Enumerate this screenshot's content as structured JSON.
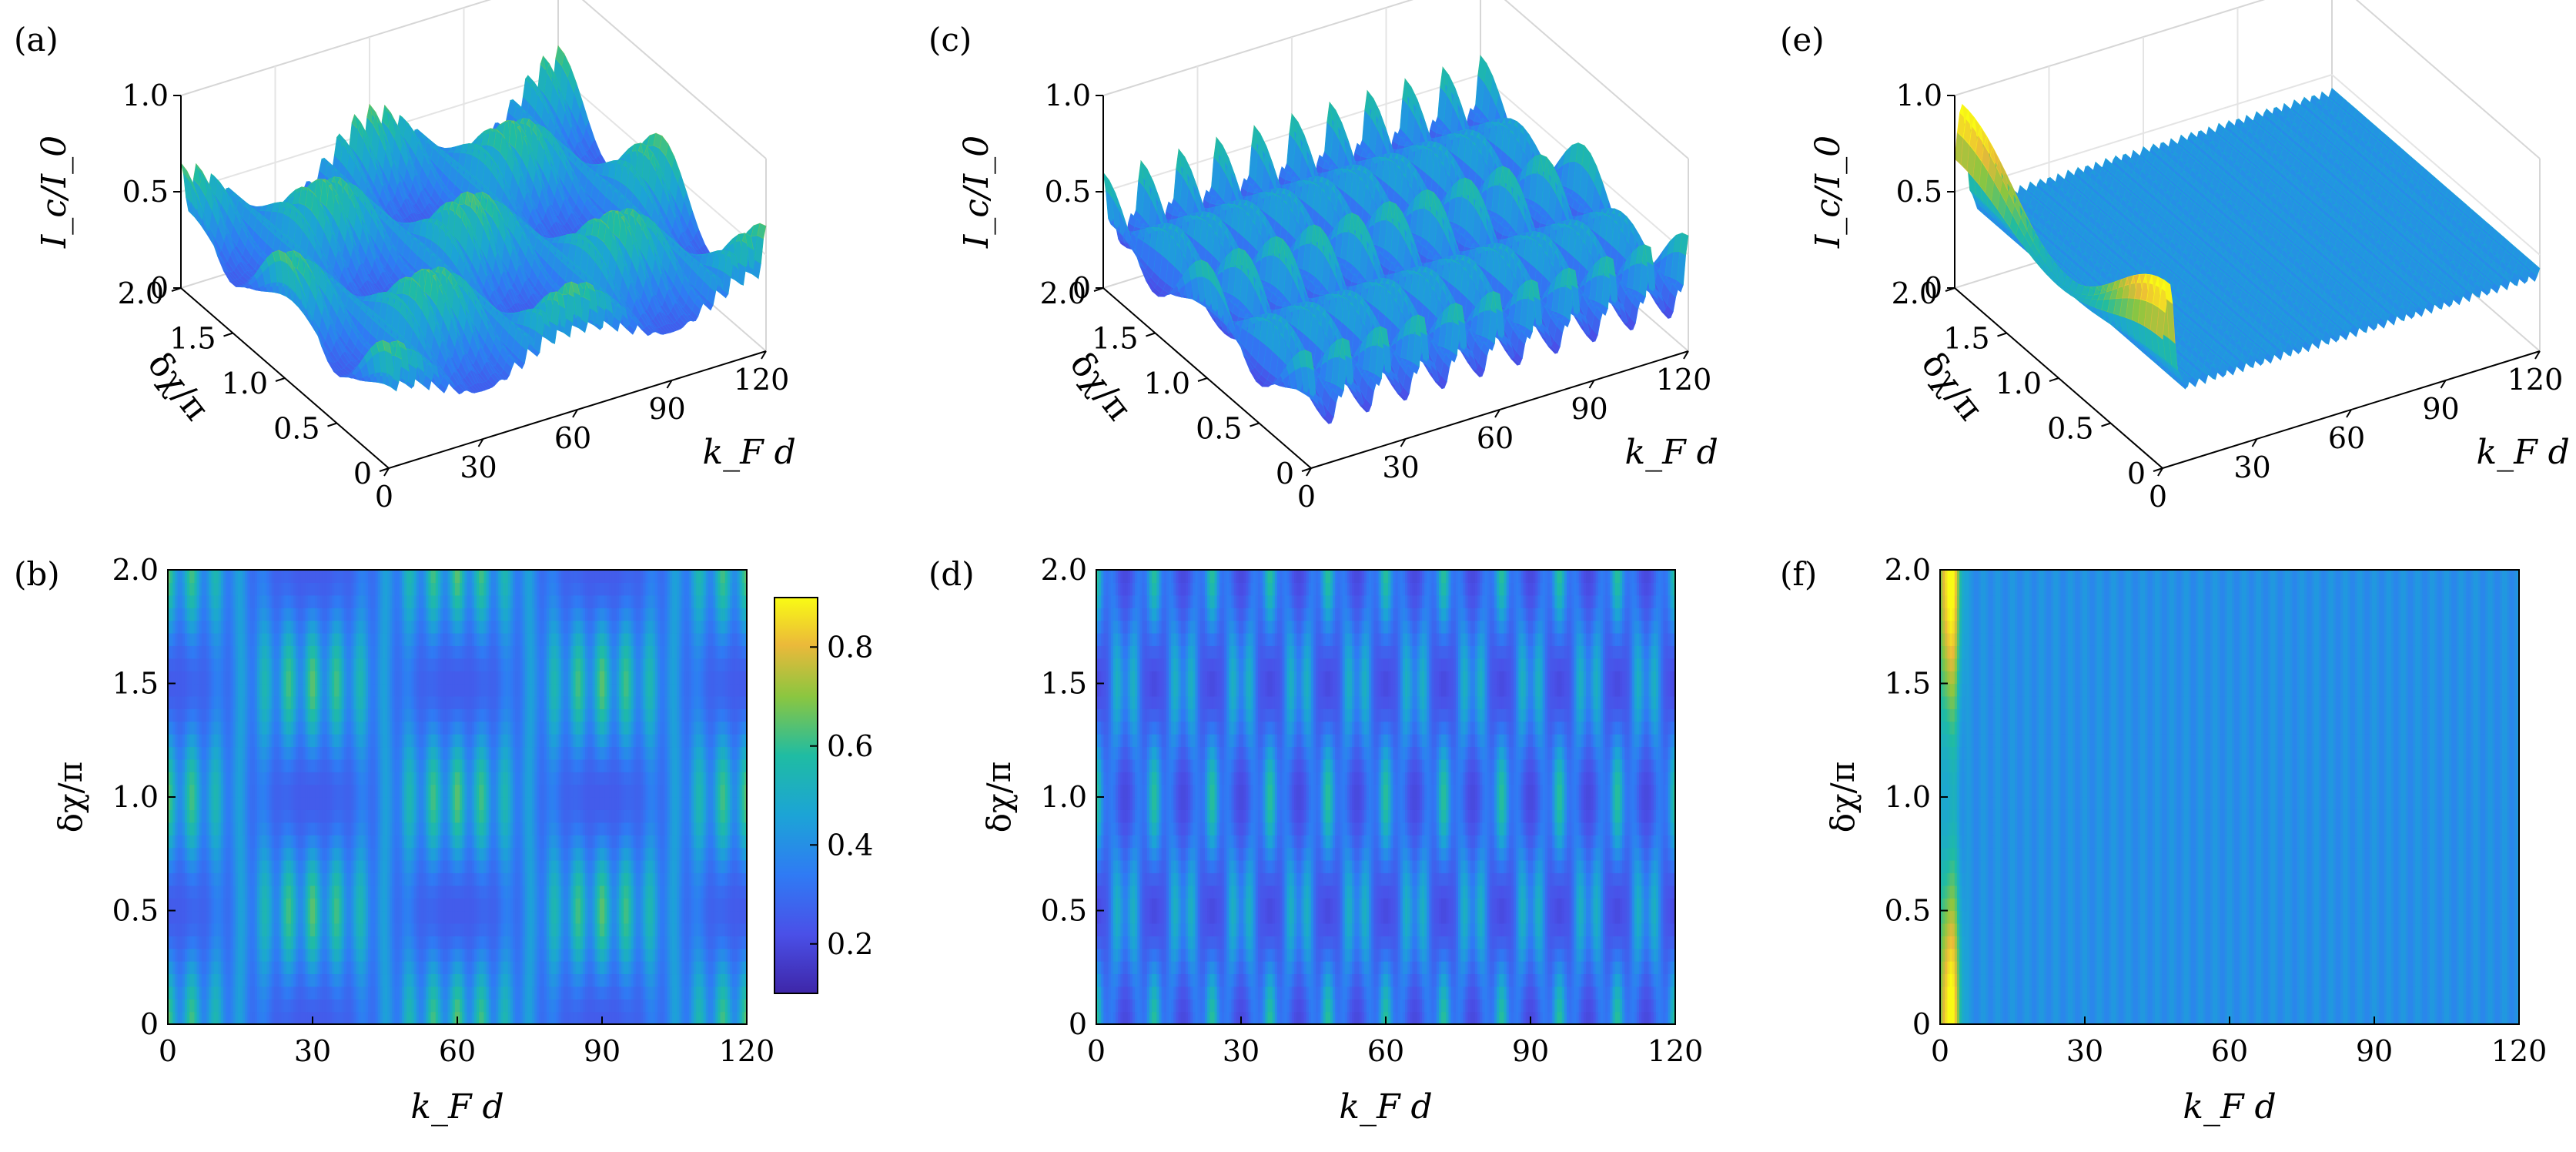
{
  "figure": {
    "panel_labels": [
      "(a)",
      "(c)",
      "(e)",
      "(b)",
      "(d)",
      "(f)"
    ],
    "colorbar_ticks": [
      "0.2",
      "0.4",
      "0.6",
      "0.8"
    ]
  },
  "chart_data": [
    {
      "id": "a",
      "type": "surface3d",
      "label": "(a)",
      "zlabel": "I_c/I_0",
      "ylabel": "δχ/π",
      "xlabel": "k_F d",
      "xticks": [
        "0",
        "30",
        "60",
        "90",
        "120"
      ],
      "yticks": [
        "0",
        "0.5",
        "1.0",
        "1.5",
        "2.0"
      ],
      "zticks": [
        "0",
        "0.5",
        "1.0"
      ],
      "xlim": [
        0,
        120
      ],
      "ylim": [
        0,
        2
      ],
      "zlim": [
        0,
        1
      ],
      "model": {
        "kind": "beat",
        "slow_period": 60,
        "fast_period": 5,
        "mean": 0.45,
        "amp": 0.4,
        "phase_bands": 2
      }
    },
    {
      "id": "c",
      "type": "surface3d",
      "label": "(c)",
      "zlabel": "I_c/I_0",
      "ylabel": "δχ/π",
      "xlabel": "k_F d",
      "xticks": [
        "0",
        "30",
        "60",
        "90",
        "120"
      ],
      "yticks": [
        "0",
        "0.5",
        "1.0",
        "1.5",
        "2.0"
      ],
      "zticks": [
        "0",
        "0.5",
        "1.0"
      ],
      "xlim": [
        0,
        120
      ],
      "ylim": [
        0,
        2
      ],
      "zlim": [
        0,
        1
      ],
      "model": {
        "kind": "periodic",
        "period": 12,
        "fast_period": 4,
        "mean": 0.4,
        "amp": 0.4,
        "phase_bands": 4
      }
    },
    {
      "id": "e",
      "type": "surface3d",
      "label": "(e)",
      "zlabel": "I_c/I_0",
      "ylabel": "δχ/π",
      "xlabel": "k_F d",
      "xticks": [
        "0",
        "30",
        "60",
        "90",
        "120"
      ],
      "yticks": [
        "0",
        "0.5",
        "1.0",
        "1.5",
        "2.0"
      ],
      "zticks": [
        "0",
        "0.5",
        "1.0"
      ],
      "xlim": [
        0,
        120
      ],
      "ylim": [
        0,
        2
      ],
      "zlim": [
        0,
        1
      ],
      "model": {
        "kind": "flat",
        "level": 0.4,
        "edge_peak": 0.55
      }
    },
    {
      "id": "b",
      "type": "heatmap",
      "label": "(b)",
      "xlabel": "k_F d",
      "ylabel": "δχ/π",
      "xticks": [
        "0",
        "30",
        "60",
        "90",
        "120"
      ],
      "yticks": [
        "0",
        "0.5",
        "1.0",
        "1.5",
        "2.0"
      ],
      "xlim": [
        0,
        120
      ],
      "ylim": [
        0,
        2
      ],
      "clim": [
        0.1,
        0.9
      ],
      "colorbar": true,
      "model": {
        "kind": "beat",
        "slow_period": 60,
        "fast_period": 5,
        "mean": 0.45,
        "amp": 0.4,
        "phase_bands": 2
      }
    },
    {
      "id": "d",
      "type": "heatmap",
      "label": "(d)",
      "xlabel": "k_F d",
      "ylabel": "δχ/π",
      "xticks": [
        "0",
        "30",
        "60",
        "90",
        "120"
      ],
      "yticks": [
        "0",
        "0.5",
        "1.0",
        "1.5",
        "2.0"
      ],
      "xlim": [
        0,
        120
      ],
      "ylim": [
        0,
        2
      ],
      "clim": [
        0.1,
        0.9
      ],
      "colorbar": false,
      "model": {
        "kind": "periodic",
        "period": 12,
        "fast_period": 4,
        "mean": 0.4,
        "amp": 0.4,
        "phase_bands": 4
      }
    },
    {
      "id": "f",
      "type": "heatmap",
      "label": "(f)",
      "xlabel": "k_F d",
      "ylabel": "δχ/π",
      "xticks": [
        "0",
        "30",
        "60",
        "90",
        "120"
      ],
      "yticks": [
        "0",
        "0.5",
        "1.0",
        "1.5",
        "2.0"
      ],
      "xlim": [
        0,
        120
      ],
      "ylim": [
        0,
        2
      ],
      "clim": [
        0.1,
        0.9
      ],
      "colorbar": false,
      "model": {
        "kind": "flat",
        "level": 0.4,
        "edge_peak": 0.55
      }
    }
  ]
}
